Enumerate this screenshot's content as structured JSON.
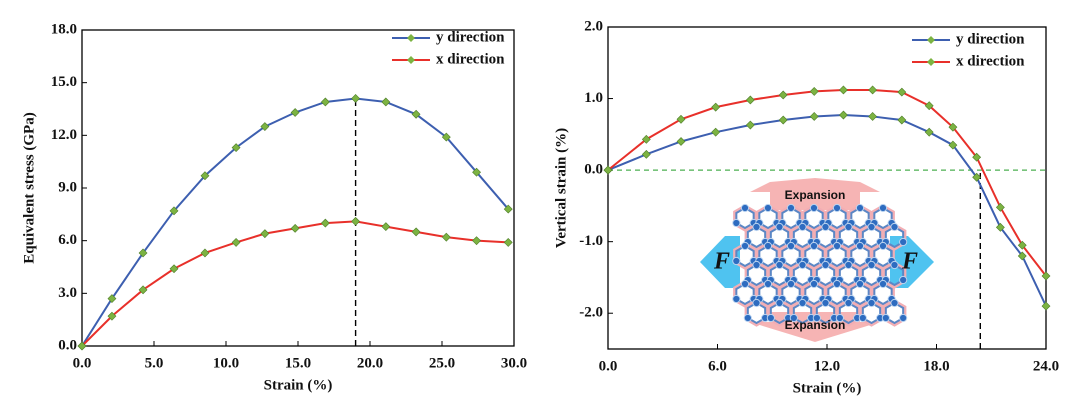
{
  "chart_data": [
    {
      "type": "line",
      "x_label": "Strain (%)",
      "y_label": "Equivalent stress (GPa)",
      "x": [
        0,
        2.08,
        4.24,
        6.39,
        8.54,
        10.7,
        12.7,
        14.8,
        16.9,
        19.0,
        21.1,
        23.2,
        25.3,
        27.4,
        29.6
      ],
      "series": [
        {
          "name": "y direction",
          "color": "#3d5fb0",
          "marker_color": "#7cb342",
          "values": [
            0,
            2.7,
            5.3,
            7.7,
            9.7,
            11.3,
            12.5,
            13.3,
            13.9,
            14.1,
            13.9,
            13.2,
            11.9,
            9.9,
            7.8
          ]
        },
        {
          "name": "x direction",
          "color": "#e8302a",
          "marker_color": "#7cb342",
          "values": [
            0,
            1.7,
            3.2,
            4.4,
            5.3,
            5.9,
            6.4,
            6.7,
            7.0,
            7.1,
            6.8,
            6.5,
            6.2,
            6.0,
            5.9
          ]
        }
      ],
      "xlim": [
        0,
        30
      ],
      "ylim": [
        0,
        18
      ],
      "xticks": [
        {
          "value": 0,
          "label": "0.0"
        },
        {
          "value": 5,
          "label": "5.0"
        },
        {
          "value": 10,
          "label": "10.0"
        },
        {
          "value": 15,
          "label": "15.0"
        },
        {
          "value": 20,
          "label": "20.0"
        },
        {
          "value": 25,
          "label": "25.0"
        },
        {
          "value": 30,
          "label": "30.0"
        }
      ],
      "yticks": [
        {
          "value": 0,
          "label": "0.0"
        },
        {
          "value": 3,
          "label": "3.0"
        },
        {
          "value": 6,
          "label": "6.0"
        },
        {
          "value": 9,
          "label": "9.0"
        },
        {
          "value": 12,
          "label": "12.0"
        },
        {
          "value": 15,
          "label": "15.0"
        },
        {
          "value": 18,
          "label": "18.0"
        }
      ],
      "vline_x": 19.0,
      "legend": "upper right"
    },
    {
      "type": "line",
      "x_label": "Strain (%)",
      "y_label": "Vertical strain (%)",
      "x": [
        0,
        2.1,
        4.0,
        5.9,
        7.8,
        9.6,
        11.3,
        12.9,
        14.5,
        16.1,
        17.6,
        18.9,
        20.2,
        21.5,
        22.7,
        24.0
      ],
      "series": [
        {
          "name": "y direction",
          "color": "#3d5fb0",
          "marker_color": "#7cb342",
          "values": [
            0,
            0.22,
            0.4,
            0.53,
            0.63,
            0.7,
            0.75,
            0.77,
            0.75,
            0.7,
            0.53,
            0.35,
            -0.1,
            -0.8,
            -1.2,
            -1.9
          ]
        },
        {
          "name": "x direction",
          "color": "#e8302a",
          "marker_color": "#7cb342",
          "values": [
            0,
            0.43,
            0.71,
            0.88,
            0.98,
            1.05,
            1.1,
            1.12,
            1.12,
            1.09,
            0.9,
            0.6,
            0.18,
            -0.52,
            -1.05,
            -1.48
          ]
        }
      ],
      "xlim": [
        0,
        24
      ],
      "ylim": [
        -2.5,
        2.0
      ],
      "xticks": [
        {
          "value": 0,
          "label": "0.0"
        },
        {
          "value": 6,
          "label": "6.0"
        },
        {
          "value": 12,
          "label": "12.0"
        },
        {
          "value": 18,
          "label": "18.0"
        },
        {
          "value": 24,
          "label": "24.0"
        }
      ],
      "yticks": [
        {
          "value": -2,
          "label": "-2.0"
        },
        {
          "value": -1,
          "label": "-1.0"
        },
        {
          "value": 0,
          "label": "0.0"
        },
        {
          "value": 1,
          "label": "1.0"
        },
        {
          "value": 2,
          "label": "2.0"
        }
      ],
      "vline_x": 20.4,
      "hline_y": 0,
      "legend": "upper right",
      "inset": {
        "top_label": "Expansion",
        "bottom_label": "Expansion",
        "force_label": "F"
      }
    }
  ]
}
